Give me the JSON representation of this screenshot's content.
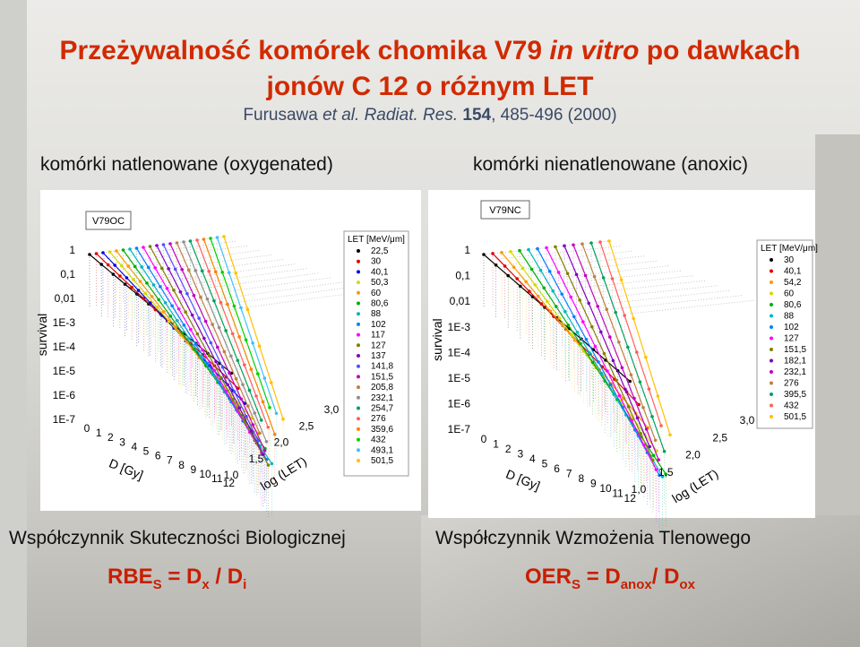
{
  "title": {
    "line1": [
      "Przeżywalność komórek chomika V79 ",
      "in vitro",
      " po dawkach"
    ],
    "line2": "jonów C 12 o różnym LET"
  },
  "citation": [
    "Furusawa ",
    "et al. Radiat. Res. ",
    "154",
    ", 485-496 (2000)"
  ],
  "panels": [
    {
      "caption": "komórki natlenowane (oxygenated)",
      "label": "V79OC",
      "y_axis_label": "survival",
      "y_ticks": [
        "1",
        "0,1",
        "0,01",
        "1E-3",
        "1E-4",
        "1E-5",
        "1E-6",
        "1E-7"
      ],
      "x_axis_label": "D [Gy]",
      "x_ticks": [
        0,
        1,
        2,
        3,
        4,
        5,
        6,
        7,
        8,
        9,
        10,
        11,
        12
      ],
      "z_axis_label": "log (LET)",
      "z_ticks": [
        "1,0",
        "1,5",
        "2,0",
        "2,5",
        "3,0"
      ],
      "legend_title": "LET [MeV/μm]",
      "legend": [
        {
          "label": "22,5",
          "color": "#000000"
        },
        {
          "label": "30",
          "color": "#e00000"
        },
        {
          "label": "40,1",
          "color": "#0000e0"
        },
        {
          "label": "50,3",
          "color": "#d8d800"
        },
        {
          "label": "60",
          "color": "#ff9900"
        },
        {
          "label": "80,6",
          "color": "#00b000"
        },
        {
          "label": "88",
          "color": "#00b8b8"
        },
        {
          "label": "102",
          "color": "#0080ff"
        },
        {
          "label": "117",
          "color": "#ff00ff"
        },
        {
          "label": "127",
          "color": "#808000"
        },
        {
          "label": "137",
          "color": "#8000c0"
        },
        {
          "label": "141,8",
          "color": "#5050ff"
        },
        {
          "label": "151,5",
          "color": "#c000c0"
        },
        {
          "label": "205,8",
          "color": "#c08040"
        },
        {
          "label": "232,1",
          "color": "#909090"
        },
        {
          "label": "254,7",
          "color": "#00a060"
        },
        {
          "label": "276",
          "color": "#ff6060"
        },
        {
          "label": "359,6",
          "color": "#ff8000"
        },
        {
          "label": "432",
          "color": "#00d000"
        },
        {
          "label": "493,1",
          "color": "#40c0ff"
        },
        {
          "label": "501,5",
          "color": "#ffc000"
        }
      ]
    },
    {
      "caption": "komórki nienatlenowane (anoxic)",
      "label": "V79NC",
      "y_axis_label": "survival",
      "y_ticks": [
        "1",
        "0,1",
        "0,01",
        "1E-3",
        "1E-4",
        "1E-5",
        "1E-6",
        "1E-7"
      ],
      "x_axis_label": "D [Gy]",
      "x_ticks": [
        0,
        1,
        2,
        3,
        4,
        5,
        6,
        7,
        8,
        9,
        10,
        11,
        12
      ],
      "z_axis_label": "log (LET)",
      "z_ticks": [
        "1,0",
        "1,5",
        "2,0",
        "2,5",
        "3,0"
      ],
      "legend_title": "LET [MeV/μm]",
      "legend": [
        {
          "label": "30",
          "color": "#000000"
        },
        {
          "label": "40,1",
          "color": "#e00000"
        },
        {
          "label": "54,2",
          "color": "#ff9900"
        },
        {
          "label": "60",
          "color": "#d8d800"
        },
        {
          "label": "80,6",
          "color": "#00b000"
        },
        {
          "label": "88",
          "color": "#00b8b8"
        },
        {
          "label": "102",
          "color": "#0080ff"
        },
        {
          "label": "127",
          "color": "#ff00ff"
        },
        {
          "label": "151,5",
          "color": "#808000"
        },
        {
          "label": "182,1",
          "color": "#8000c0"
        },
        {
          "label": "232,1",
          "color": "#c000c0"
        },
        {
          "label": "276",
          "color": "#c08040"
        },
        {
          "label": "395,5",
          "color": "#00a060"
        },
        {
          "label": "432",
          "color": "#ff6060"
        },
        {
          "label": "501,5",
          "color": "#ffc000"
        }
      ]
    }
  ],
  "bottom": [
    {
      "heading": "Współczynnik Skuteczności Biologicznej",
      "formula": [
        {
          "text": "RBE"
        },
        {
          "sub": "S"
        },
        {
          "text": " = D"
        },
        {
          "sub": "x"
        },
        {
          "text": " / D"
        },
        {
          "sub": "i"
        }
      ]
    },
    {
      "heading": "Współczynnik Wzmożenia Tlenowego",
      "formula": [
        {
          "text": "OER"
        },
        {
          "sub": "S"
        },
        {
          "text": " = D"
        },
        {
          "sub": "anox"
        },
        {
          "text": "/ D"
        },
        {
          "sub": "ox"
        }
      ]
    }
  ]
}
